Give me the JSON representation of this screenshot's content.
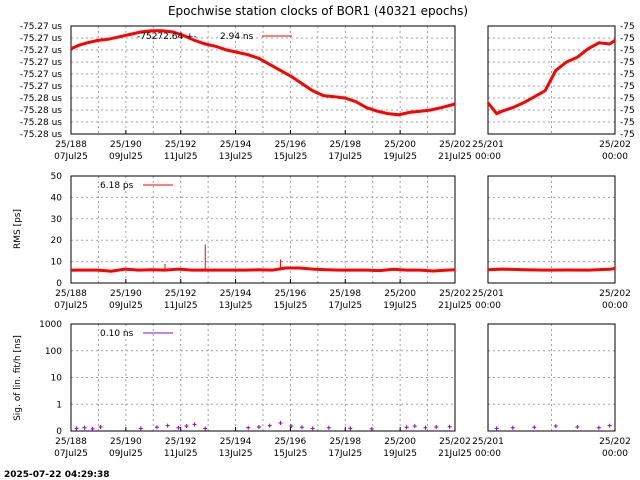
{
  "title": "Epochwise station clocks of BOR1 (40321 epochs)",
  "timestamp": "2025-07-22 04:29:38",
  "colors": {
    "clock": "#ff0000",
    "rms": "#ff0000",
    "sig": "#9400d3",
    "grid": "#a0a0a0"
  },
  "x_ticks_main": [
    {
      "top": "25/188",
      "bottom": "07Jul25"
    },
    {
      "top": "25/190",
      "bottom": "09Jul25"
    },
    {
      "top": "25/192",
      "bottom": "11Jul25"
    },
    {
      "top": "25/194",
      "bottom": "13Jul25"
    },
    {
      "top": "25/196",
      "bottom": "15Jul25"
    },
    {
      "top": "25/198",
      "bottom": "17Jul25"
    },
    {
      "top": "25/200",
      "bottom": "19Jul25"
    },
    {
      "top": "25/202",
      "bottom": "21Jul25"
    }
  ],
  "x_ticks_zoom": [
    {
      "top": "25/201",
      "bottom": "00:00"
    },
    {
      "top": "25/202",
      "bottom": "00:00"
    }
  ],
  "chart_data": [
    {
      "type": "line",
      "name": "clock",
      "legend": {
        "label": "-75272.64 +-",
        "value": "2.94 ns"
      },
      "ytick_labels": [
        "-75.27 us",
        "-75.27 us",
        "-75.27 us",
        "-75.27 us",
        "-75.27 us",
        "-75.27 us",
        "-75.28 us",
        "-75.28 us",
        "-75.28 us",
        "-75.28 us"
      ],
      "ytick_labels_right": [
        "-75",
        "-75",
        "-75",
        "-75",
        "-75",
        "-75",
        "-75",
        "-75",
        "-75",
        "-75"
      ],
      "xlim": [
        188,
        202.3
      ],
      "ylim": [
        0,
        9
      ],
      "series": [
        {
          "x": [
            188.0,
            188.3,
            188.6,
            189.0,
            189.4,
            189.8,
            190.2,
            190.6,
            191.0,
            191.4,
            191.8,
            192.2,
            192.6,
            193.0,
            193.4,
            193.8,
            194.2,
            194.6,
            195.0,
            195.4,
            195.8,
            196.2,
            196.6,
            197.0,
            197.4,
            197.8,
            198.2,
            198.6,
            199.0,
            199.4,
            199.8,
            200.2,
            200.6,
            201.0,
            201.4,
            201.8,
            202.3
          ],
          "y": [
            7.1,
            7.4,
            7.6,
            7.8,
            7.9,
            8.1,
            8.3,
            8.5,
            8.6,
            8.6,
            8.5,
            8.2,
            7.8,
            7.5,
            7.3,
            7.0,
            6.8,
            6.6,
            6.3,
            5.8,
            5.3,
            4.8,
            4.2,
            3.6,
            3.2,
            3.1,
            3.0,
            2.7,
            2.2,
            1.9,
            1.7,
            1.6,
            1.8,
            1.9,
            2.0,
            2.2,
            2.5
          ]
        }
      ],
      "zoom": {
        "xlim": [
          200.87,
          202.05
        ],
        "ylim": [
          0,
          9
        ],
        "x": [
          200.87,
          200.95,
          201.0,
          201.1,
          201.2,
          201.3,
          201.4,
          201.5,
          201.6,
          201.7,
          201.8,
          201.9,
          202.0,
          202.05
        ],
        "y": [
          2.6,
          1.7,
          1.9,
          2.2,
          2.6,
          3.1,
          3.6,
          5.3,
          6.0,
          6.4,
          7.1,
          7.6,
          7.5,
          7.8
        ]
      }
    },
    {
      "type": "line",
      "name": "rms",
      "ylabel": "RMS [ps]",
      "legend": {
        "value": "6.18 ps"
      },
      "yticks": [
        0,
        10,
        20,
        30,
        40,
        50
      ],
      "ylim": [
        0,
        50
      ],
      "xlim": [
        188,
        202.3
      ],
      "series": [
        {
          "x": [
            188.0,
            189.0,
            189.5,
            190.0,
            190.5,
            191.0,
            191.5,
            192.0,
            192.5,
            193.0,
            193.5,
            194.0,
            194.5,
            195.0,
            195.5,
            196.0,
            196.5,
            197.0,
            197.5,
            198.0,
            198.5,
            199.0,
            199.5,
            200.0,
            200.5,
            201.0,
            201.5,
            202.0,
            202.3
          ],
          "y": [
            6,
            6,
            5.5,
            6.5,
            6,
            6.2,
            6,
            6.5,
            6,
            6,
            6,
            6,
            6,
            6.2,
            6,
            7,
            7,
            6.5,
            6.2,
            6,
            6,
            6,
            5.8,
            6.4,
            6,
            6,
            5.6,
            6,
            6.2
          ]
        }
      ],
      "spikes": [
        {
          "x": 191.5,
          "y": 9
        },
        {
          "x": 193.0,
          "y": 18
        },
        {
          "x": 195.8,
          "y": 11
        }
      ],
      "zoom": {
        "xlim": [
          200.87,
          202.05
        ],
        "ylim": [
          0,
          50
        ],
        "x": [
          200.87,
          201.0,
          201.2,
          201.4,
          201.6,
          201.8,
          202.0,
          202.05
        ],
        "y": [
          6.2,
          6.5,
          6.2,
          6.0,
          6.1,
          6.0,
          6.4,
          6.8
        ]
      }
    },
    {
      "type": "scatter",
      "name": "sig",
      "ylabel": "Sig. of lin. fit/h [ns]",
      "legend": {
        "value": "0.10 ns"
      },
      "yscale": "log",
      "yticks": [
        "1000",
        "100",
        "10",
        "1",
        "0"
      ],
      "xlim": [
        188,
        202.3
      ],
      "x": [
        188.2,
        188.5,
        188.8,
        189.1,
        190.6,
        191.2,
        191.6,
        192.0,
        192.3,
        192.6,
        193.0,
        194.6,
        195.0,
        195.4,
        195.8,
        196.2,
        196.6,
        197.0,
        197.6,
        198.4,
        199.2,
        200.5,
        200.8,
        201.2,
        201.6,
        202.1
      ],
      "y": [
        0.1,
        0.12,
        0.08,
        0.15,
        0.1,
        0.14,
        0.2,
        0.12,
        0.18,
        0.25,
        0.1,
        0.12,
        0.15,
        0.2,
        0.3,
        0.18,
        0.14,
        0.1,
        0.12,
        0.1,
        0.08,
        0.14,
        0.18,
        0.12,
        0.15,
        0.16
      ],
      "zoom": {
        "xlim": [
          200.87,
          202.05
        ],
        "x": [
          200.95,
          201.1,
          201.3,
          201.5,
          201.7,
          201.9,
          202.0
        ],
        "y": [
          0.1,
          0.12,
          0.14,
          0.18,
          0.15,
          0.12,
          0.2
        ]
      }
    }
  ]
}
